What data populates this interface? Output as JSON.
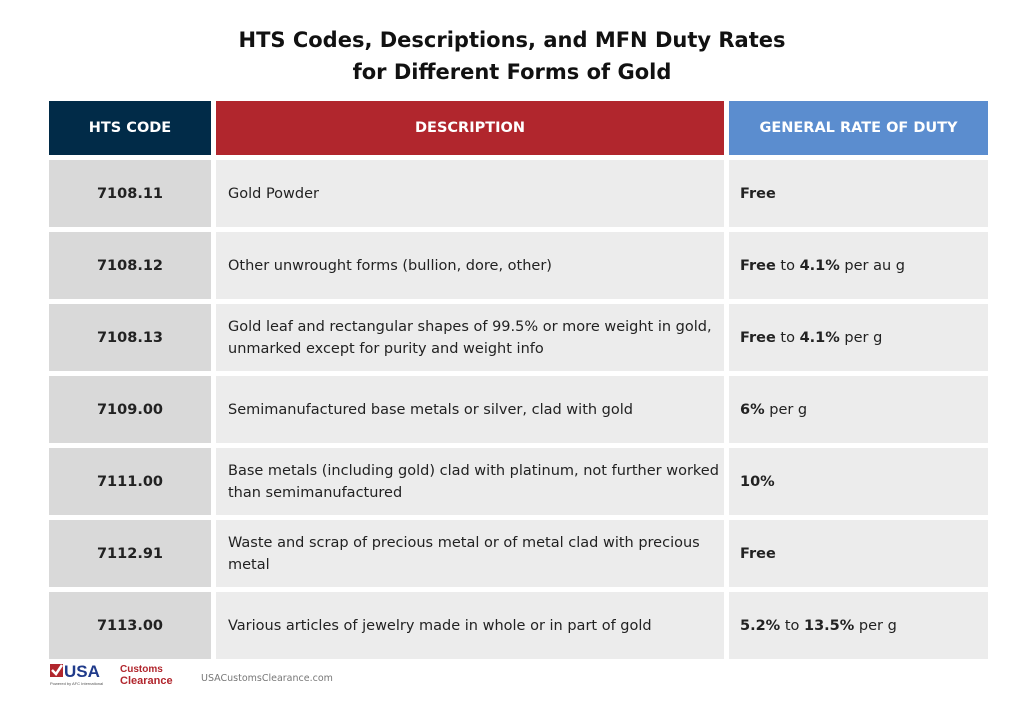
{
  "title_line1": "HTS Codes, Descriptions, and MFN Duty Rates",
  "title_line2": "for Different Forms of Gold",
  "colors": {
    "code_header": "#012b48",
    "desc_header": "#b1262d",
    "rate_header": "#5b8dcf"
  },
  "headers": [
    "HTS CODE",
    "DESCRIPTION",
    "GENERAL RATE OF DUTY"
  ],
  "rows": [
    {
      "code": "7108.11",
      "description": "Gold Powder",
      "rate": [
        {
          "t": "Free",
          "b": true
        }
      ]
    },
    {
      "code": "7108.12",
      "description": "Other unwrought forms (bullion, dore, other)",
      "rate": [
        {
          "t": "Free",
          "b": true
        },
        {
          "t": " to ",
          "b": false
        },
        {
          "t": "4.1%",
          "b": true
        },
        {
          "t": " per au g",
          "b": false
        }
      ]
    },
    {
      "code": "7108.13",
      "description": "Gold leaf and rectangular shapes of 99.5% or more weight in gold, unmarked except for purity and weight info",
      "rate": [
        {
          "t": "Free",
          "b": true
        },
        {
          "t": " to ",
          "b": false
        },
        {
          "t": "4.1%",
          "b": true
        },
        {
          "t": " per g",
          "b": false
        }
      ]
    },
    {
      "code": "7109.00",
      "description": "Semimanufactured base metals or silver, clad with gold",
      "rate": [
        {
          "t": "6%",
          "b": true
        },
        {
          "t": " per g",
          "b": false
        }
      ]
    },
    {
      "code": "7111.00",
      "description": "Base metals (including gold) clad with platinum, not further worked than semimanufactured",
      "rate": [
        {
          "t": "10%",
          "b": true
        }
      ]
    },
    {
      "code": "7112.91",
      "description": "Waste and scrap of precious metal or of metal clad with precious metal",
      "rate": [
        {
          "t": "Free",
          "b": true
        }
      ]
    },
    {
      "code": "7113.00",
      "description": "Various articles of jewelry made in whole or in part of gold",
      "rate": [
        {
          "t": "5.2%",
          "b": true
        },
        {
          "t": " to ",
          "b": false
        },
        {
          "t": "13.5%",
          "b": true
        },
        {
          "t": " per g",
          "b": false
        }
      ]
    }
  ],
  "footer": {
    "logo_text": "USA Customs Clearance",
    "logo_tagline": "Powered by AFC International",
    "url": "USACustomsClearance.com"
  }
}
